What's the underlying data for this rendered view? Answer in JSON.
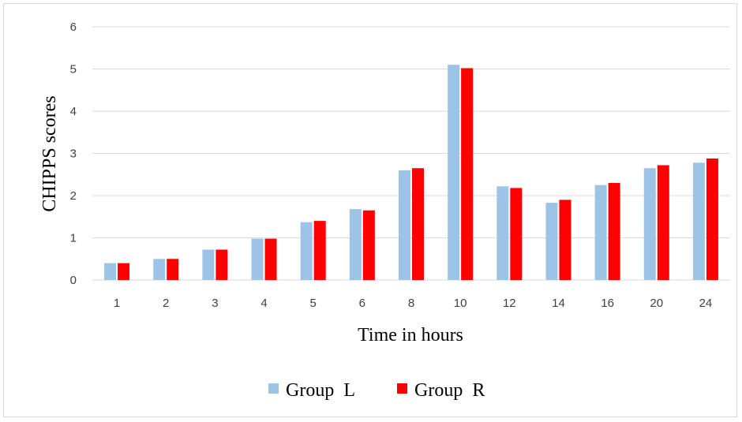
{
  "chart_data": {
    "type": "bar",
    "categories": [
      "1",
      "2",
      "3",
      "4",
      "5",
      "6",
      "8",
      "10",
      "12",
      "14",
      "16",
      "20",
      "24"
    ],
    "series": [
      {
        "name": "Group  L",
        "color": "#9dc3e6",
        "values": [
          0.4,
          0.5,
          0.72,
          0.98,
          1.37,
          1.68,
          2.6,
          5.1,
          2.22,
          1.83,
          2.25,
          2.65,
          2.78
        ]
      },
      {
        "name": "Group  R",
        "color": "#ff0000",
        "values": [
          0.4,
          0.5,
          0.72,
          0.98,
          1.4,
          1.65,
          2.65,
          5.02,
          2.18,
          1.9,
          2.3,
          2.72,
          2.88
        ]
      }
    ],
    "title": "",
    "xlabel": "Time  in  hours",
    "ylabel": "CHIPPS scores",
    "ylim": [
      0,
      6
    ],
    "yticks": [
      "0",
      "1",
      "2",
      "3",
      "4",
      "5",
      "6"
    ],
    "grid": true,
    "gridline_color": "#d9d9d9",
    "legend_position": "bottom"
  }
}
